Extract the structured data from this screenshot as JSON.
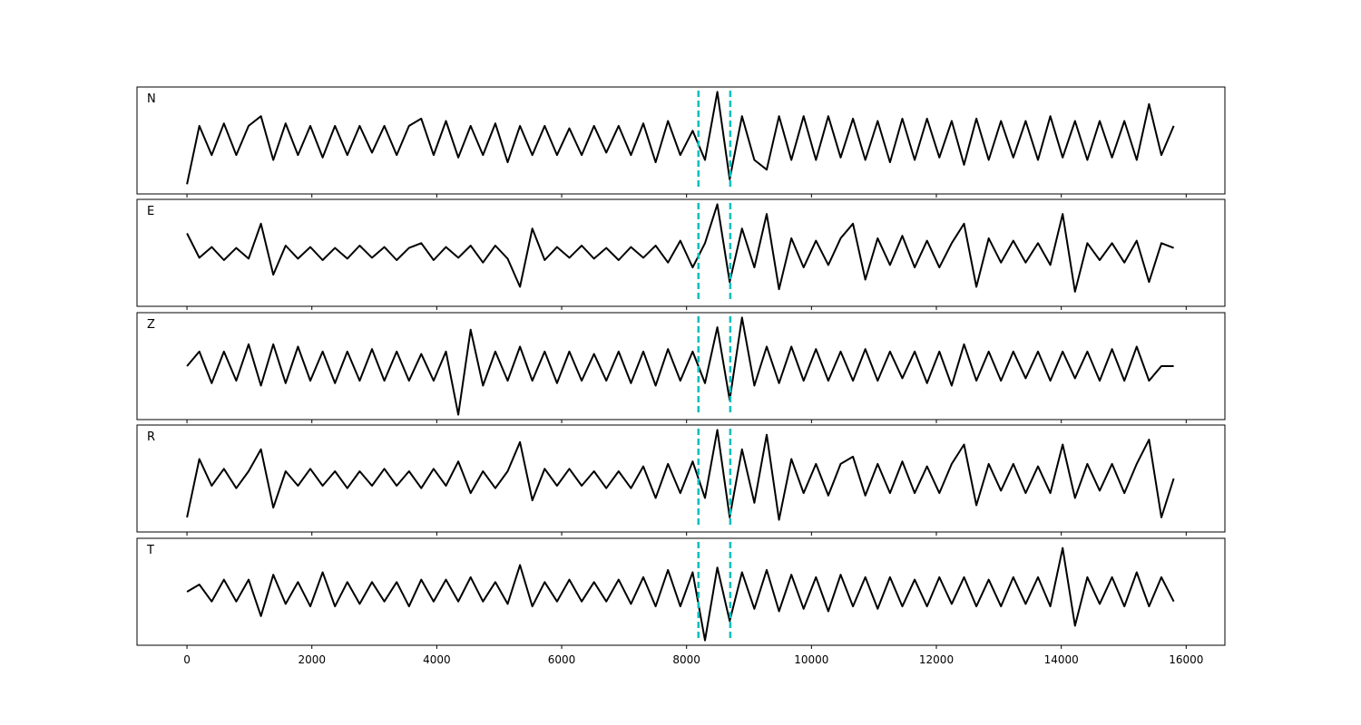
{
  "chart_data": {
    "type": "line",
    "layout": "5 stacked panels, shared x axis",
    "xlim": [
      -800,
      16620
    ],
    "ylim": [
      -1.1,
      1.1
    ],
    "x_range": [
      0,
      15800
    ],
    "x_ticks": [
      0,
      2000,
      4000,
      6000,
      8000,
      10000,
      12000,
      14000,
      16000
    ],
    "x_tick_labels": [
      "0",
      "2000",
      "4000",
      "6000",
      "8000",
      "10000",
      "12000",
      "14000",
      "16000"
    ],
    "grid": false,
    "line_color": "#000000",
    "vertical_markers": {
      "values": [
        8190,
        8700
      ],
      "color": "#00bfbf",
      "style": "dashed"
    },
    "panels": [
      {
        "label": "N",
        "values": [
          -0.9,
          0.3,
          -0.3,
          0.35,
          -0.3,
          0.3,
          0.5,
          -0.4,
          0.35,
          -0.3,
          0.3,
          -0.35,
          0.3,
          -0.3,
          0.3,
          -0.25,
          0.3,
          -0.3,
          0.3,
          0.45,
          -0.3,
          0.4,
          -0.35,
          0.3,
          -0.3,
          0.35,
          -0.45,
          0.3,
          -0.3,
          0.3,
          -0.3,
          0.25,
          -0.3,
          0.3,
          -0.25,
          0.3,
          -0.3,
          0.35,
          -0.45,
          0.4,
          -0.3,
          0.2,
          -0.4,
          1.0,
          -0.8,
          0.5,
          -0.4,
          -0.6,
          0.5,
          -0.4,
          0.5,
          -0.4,
          0.5,
          -0.35,
          0.45,
          -0.4,
          0.4,
          -0.45,
          0.45,
          -0.4,
          0.45,
          -0.35,
          0.4,
          -0.5,
          0.45,
          -0.4,
          0.4,
          -0.35,
          0.4,
          -0.4,
          0.5,
          -0.35,
          0.4,
          -0.4,
          0.4,
          -0.35,
          0.4,
          -0.4,
          0.75,
          -0.3,
          0.3
        ]
      },
      {
        "label": "E",
        "values": [
          0.4,
          -0.1,
          0.12,
          -0.15,
          0.1,
          -0.12,
          0.6,
          -0.45,
          0.15,
          -0.12,
          0.12,
          -0.15,
          0.1,
          -0.12,
          0.15,
          -0.1,
          0.12,
          -0.15,
          0.1,
          0.2,
          -0.15,
          0.12,
          -0.1,
          0.15,
          -0.2,
          0.15,
          -0.12,
          -0.7,
          0.5,
          -0.15,
          0.12,
          -0.1,
          0.15,
          -0.12,
          0.1,
          -0.15,
          0.12,
          -0.1,
          0.15,
          -0.2,
          0.25,
          -0.3,
          0.2,
          1.0,
          -0.6,
          0.5,
          -0.3,
          0.8,
          -0.75,
          0.3,
          -0.3,
          0.25,
          -0.25,
          0.3,
          0.6,
          -0.55,
          0.3,
          -0.25,
          0.35,
          -0.3,
          0.25,
          -0.3,
          0.2,
          0.6,
          -0.7,
          0.3,
          -0.2,
          0.25,
          -0.2,
          0.2,
          -0.25,
          0.8,
          -0.8,
          0.2,
          -0.15,
          0.2,
          -0.2,
          0.25,
          -0.6,
          0.2,
          0.1
        ]
      },
      {
        "label": "Z",
        "values": [
          0.0,
          0.3,
          -0.35,
          0.3,
          -0.3,
          0.45,
          -0.4,
          0.45,
          -0.35,
          0.4,
          -0.3,
          0.3,
          -0.35,
          0.3,
          -0.3,
          0.35,
          -0.3,
          0.3,
          -0.3,
          0.25,
          -0.3,
          0.3,
          -1.0,
          0.75,
          -0.4,
          0.3,
          -0.3,
          0.4,
          -0.3,
          0.3,
          -0.35,
          0.3,
          -0.3,
          0.25,
          -0.3,
          0.3,
          -0.35,
          0.3,
          -0.4,
          0.35,
          -0.3,
          0.3,
          -0.35,
          0.8,
          -0.7,
          1.0,
          -0.4,
          0.4,
          -0.35,
          0.4,
          -0.3,
          0.35,
          -0.3,
          0.3,
          -0.3,
          0.35,
          -0.3,
          0.3,
          -0.25,
          0.3,
          -0.35,
          0.3,
          -0.4,
          0.45,
          -0.3,
          0.3,
          -0.3,
          0.3,
          -0.25,
          0.3,
          -0.3,
          0.3,
          -0.25,
          0.3,
          -0.3,
          0.35,
          -0.3,
          0.4,
          -0.3,
          0.0,
          0.0
        ]
      },
      {
        "label": "R",
        "values": [
          -0.8,
          0.4,
          -0.15,
          0.2,
          -0.2,
          0.15,
          0.6,
          -0.6,
          0.15,
          -0.15,
          0.2,
          -0.15,
          0.15,
          -0.2,
          0.15,
          -0.15,
          0.2,
          -0.15,
          0.15,
          -0.2,
          0.2,
          -0.15,
          0.35,
          -0.3,
          0.15,
          -0.2,
          0.15,
          0.75,
          -0.45,
          0.2,
          -0.15,
          0.2,
          -0.15,
          0.15,
          -0.2,
          0.15,
          -0.2,
          0.25,
          -0.4,
          0.3,
          -0.3,
          0.35,
          -0.4,
          1.0,
          -0.8,
          0.6,
          -0.5,
          0.9,
          -0.85,
          0.4,
          -0.3,
          0.3,
          -0.35,
          0.3,
          0.45,
          -0.35,
          0.3,
          -0.3,
          0.35,
          -0.3,
          0.25,
          -0.3,
          0.3,
          0.7,
          -0.55,
          0.3,
          -0.25,
          0.3,
          -0.3,
          0.25,
          -0.3,
          0.7,
          -0.4,
          0.3,
          -0.25,
          0.3,
          -0.3,
          0.3,
          0.8,
          -0.8,
          0.0
        ]
      },
      {
        "label": "T",
        "values": [
          0.0,
          0.15,
          -0.2,
          0.25,
          -0.2,
          0.25,
          -0.5,
          0.35,
          -0.25,
          0.2,
          -0.3,
          0.4,
          -0.3,
          0.2,
          -0.25,
          0.2,
          -0.2,
          0.2,
          -0.3,
          0.25,
          -0.2,
          0.25,
          -0.2,
          0.3,
          -0.2,
          0.2,
          -0.25,
          0.55,
          -0.3,
          0.2,
          -0.2,
          0.25,
          -0.2,
          0.2,
          -0.2,
          0.25,
          -0.25,
          0.3,
          -0.3,
          0.45,
          -0.3,
          0.4,
          -1.0,
          0.5,
          -0.6,
          0.4,
          -0.35,
          0.45,
          -0.4,
          0.35,
          -0.35,
          0.3,
          -0.4,
          0.35,
          -0.3,
          0.3,
          -0.35,
          0.3,
          -0.3,
          0.25,
          -0.3,
          0.3,
          -0.25,
          0.3,
          -0.3,
          0.25,
          -0.3,
          0.3,
          -0.25,
          0.3,
          -0.3,
          0.9,
          -0.7,
          0.3,
          -0.25,
          0.3,
          -0.3,
          0.4,
          -0.3,
          0.3,
          -0.2
        ]
      }
    ]
  }
}
